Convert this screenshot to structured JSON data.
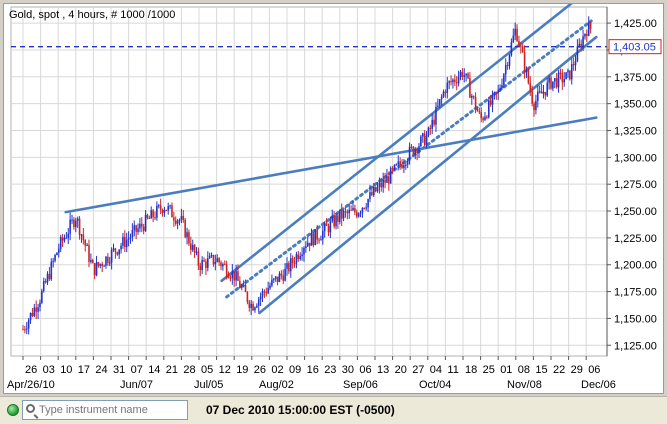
{
  "chart_header": "Gold, spot , 4 hours, # 1000 /1000",
  "status_bar": {
    "search_placeholder": "Type instrument name",
    "datetime": "07 Dec 2010 15:00:00  EST (-0500)"
  },
  "colors": {
    "bullish_body": "#2233cc",
    "bearish_body": "#cc2222",
    "trendline": "#4a7dc0",
    "price_marker": "#2233cc",
    "status_indicator": "#1f9a2f"
  },
  "chart_data": {
    "type": "candlestick",
    "title": "Gold, spot , 4 hours, # 1000 /1000",
    "instrument": "Gold, spot",
    "timeframe": "4 hours",
    "ylim": [
      1115,
      1440
    ],
    "y_ticks": [
      "1,125.00",
      "1,150.00",
      "1,175.00",
      "1,200.00",
      "1,225.00",
      "1,250.00",
      "1,275.00",
      "1,300.00",
      "1,325.00",
      "1,350.00",
      "1,375.00",
      "1,400.00",
      "1,425.00"
    ],
    "current_price": "1,403.05",
    "date_labels": [
      "26",
      "03",
      "10",
      "17",
      "24",
      "31",
      "07",
      "14",
      "21",
      "28",
      "05",
      "12",
      "19",
      "26",
      "02",
      "09",
      "16",
      "23",
      "30",
      "06",
      "13",
      "20",
      "27",
      "04",
      "11",
      "18",
      "25",
      "01",
      "08",
      "15",
      "22",
      "29",
      "06"
    ],
    "month_labels": [
      "Apr/26/10",
      "Jun/07",
      "Jul/05",
      "Aug/02",
      "Sep/06",
      "Oct/04",
      "Nov/08",
      "Dec/06"
    ],
    "price_path": [
      {
        "date": "2010-04-26",
        "price": 1140
      },
      {
        "date": "2010-05-03",
        "price": 1170
      },
      {
        "date": "2010-05-10",
        "price": 1215
      },
      {
        "date": "2010-05-17",
        "price": 1245
      },
      {
        "date": "2010-05-24",
        "price": 1195
      },
      {
        "date": "2010-05-31",
        "price": 1210
      },
      {
        "date": "2010-06-07",
        "price": 1225
      },
      {
        "date": "2010-06-14",
        "price": 1240
      },
      {
        "date": "2010-06-21",
        "price": 1255
      },
      {
        "date": "2010-06-28",
        "price": 1240
      },
      {
        "date": "2010-07-05",
        "price": 1200
      },
      {
        "date": "2010-07-12",
        "price": 1205
      },
      {
        "date": "2010-07-19",
        "price": 1190
      },
      {
        "date": "2010-07-26",
        "price": 1162
      },
      {
        "date": "2010-08-02",
        "price": 1180
      },
      {
        "date": "2010-08-09",
        "price": 1195
      },
      {
        "date": "2010-08-16",
        "price": 1220
      },
      {
        "date": "2010-08-23",
        "price": 1230
      },
      {
        "date": "2010-08-30",
        "price": 1245
      },
      {
        "date": "2010-09-06",
        "price": 1250
      },
      {
        "date": "2010-09-13",
        "price": 1268
      },
      {
        "date": "2010-09-20",
        "price": 1285
      },
      {
        "date": "2010-09-27",
        "price": 1305
      },
      {
        "date": "2010-10-04",
        "price": 1320
      },
      {
        "date": "2010-10-11",
        "price": 1365
      },
      {
        "date": "2010-10-18",
        "price": 1380
      },
      {
        "date": "2010-10-25",
        "price": 1335
      },
      {
        "date": "2010-11-01",
        "price": 1360
      },
      {
        "date": "2010-11-08",
        "price": 1420
      },
      {
        "date": "2010-11-15",
        "price": 1350
      },
      {
        "date": "2010-11-22",
        "price": 1370
      },
      {
        "date": "2010-11-29",
        "price": 1375
      },
      {
        "date": "2010-12-06",
        "price": 1420
      }
    ],
    "trendlines": [
      {
        "style": "solid",
        "from": {
          "date": "2010-05-13",
          "price": 1249
        },
        "to": {
          "date": "2010-12-10",
          "price": 1337
        }
      },
      {
        "style": "solid",
        "from": {
          "date": "2010-07-14",
          "price": 1185
        },
        "to": {
          "date": "2010-12-01",
          "price": 1445
        }
      },
      {
        "style": "dotted",
        "from": {
          "date": "2010-07-16",
          "price": 1170
        },
        "to": {
          "date": "2010-12-08",
          "price": 1427
        }
      },
      {
        "style": "solid",
        "from": {
          "date": "2010-07-29",
          "price": 1155
        },
        "to": {
          "date": "2010-12-10",
          "price": 1412
        }
      },
      {
        "style": "dashed-horizontal",
        "price": 1403.05
      }
    ],
    "grid": true
  }
}
